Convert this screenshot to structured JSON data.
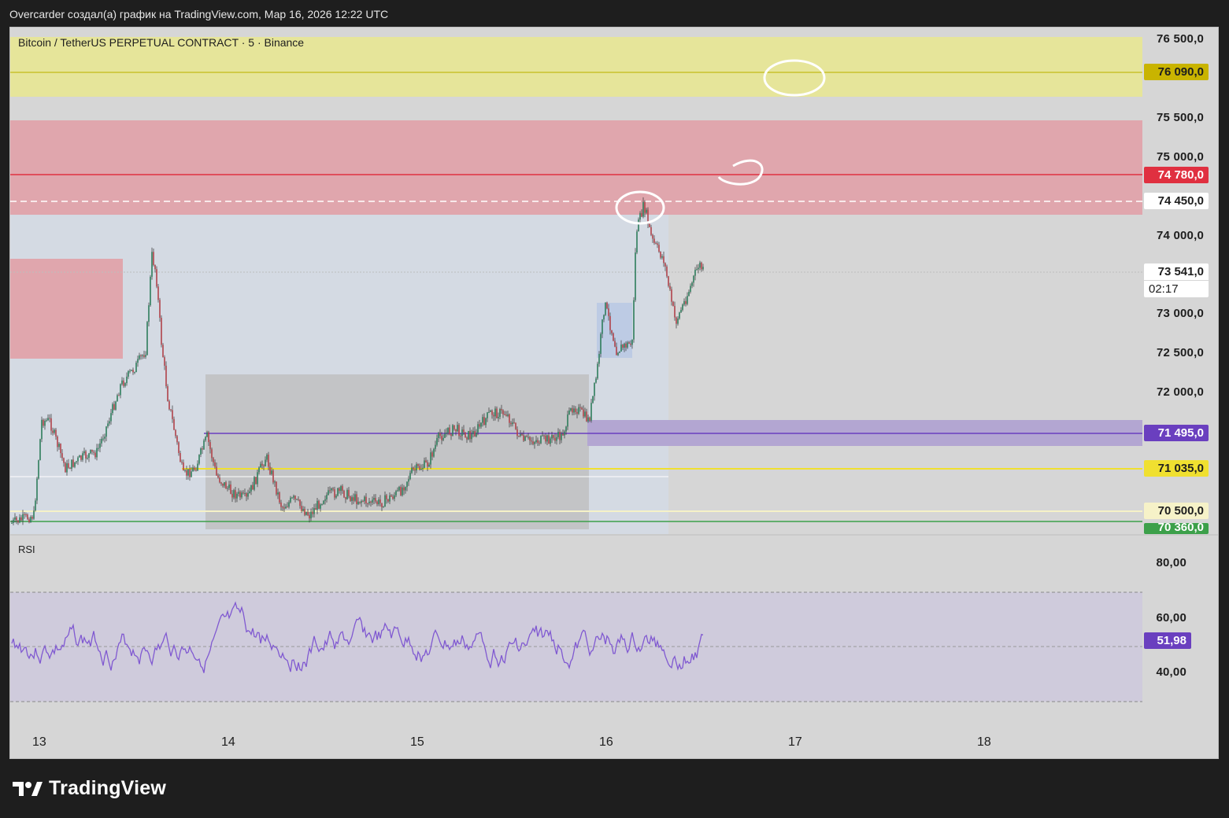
{
  "caption": "Overcarder создал(a) график на TradingView.com, Мар 16, 2026 12:22 UTC",
  "symbol_title": "Bitcoin / TetherUS PERPETUAL CONTRACT · 5 · Binance",
  "rsi_title": "RSI",
  "price_axis": [
    "76 500,0",
    "75 500,0",
    "75 000,0",
    "74 000,0",
    "73 000,0",
    "72 500,0",
    "72 000,0"
  ],
  "rsi_axis": [
    "80,00",
    "60,00",
    "40,00"
  ],
  "badges": {
    "yellow_level": "76 090,0",
    "red_level": "74 780,0",
    "dashed_level": "74 450,0",
    "current_price": "73 541,0",
    "countdown": "02:17",
    "purple_level": "71 495,0",
    "yellow2_level": "71 035,0",
    "cream_level": "70 500,0",
    "green_level": "70 360,0",
    "rsi_value": "51,98"
  },
  "dates": [
    "13",
    "14",
    "15",
    "16",
    "17",
    "18"
  ],
  "brand": "TradingView",
  "colors": {
    "background": "#d6d6d6",
    "yellow_zone": "#e6e59a",
    "red_zone": "#e0a6ad",
    "red_line": "#e03040",
    "purple": "#6a3fbf",
    "green": "#3ca04a",
    "rsi_line": "#8059d1"
  }
}
